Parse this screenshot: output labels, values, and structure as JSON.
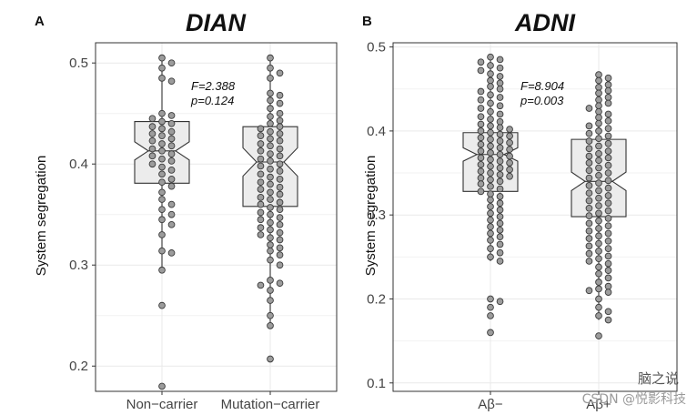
{
  "chart_data": [
    {
      "type": "box",
      "panel_label": "A",
      "title": "DIAN",
      "ylabel": "System segregation",
      "xlabel": "",
      "ylim": [
        0.175,
        0.52
      ],
      "yticks": [
        0.2,
        0.3,
        0.4,
        0.5
      ],
      "ytick_labels": [
        "0.2",
        "0.3",
        "0.4",
        "0.5"
      ],
      "grid": true,
      "annotation": [
        "F=2.388",
        "p=0.124"
      ],
      "groups": [
        {
          "name": "Non−carrier",
          "q1": 0.381,
          "median": 0.413,
          "q3": 0.442,
          "whisker_low": 0.295,
          "whisker_high": 0.505,
          "notch": 0.009,
          "points": [
            0.505,
            0.5,
            0.495,
            0.485,
            0.482,
            0.45,
            0.448,
            0.445,
            0.442,
            0.44,
            0.437,
            0.435,
            0.432,
            0.43,
            0.428,
            0.425,
            0.423,
            0.42,
            0.418,
            0.415,
            0.413,
            0.41,
            0.408,
            0.405,
            0.403,
            0.4,
            0.397,
            0.394,
            0.39,
            0.385,
            0.382,
            0.378,
            0.372,
            0.365,
            0.36,
            0.355,
            0.35,
            0.345,
            0.34,
            0.33,
            0.314,
            0.312,
            0.295,
            0.26,
            0.18
          ]
        },
        {
          "name": "Mutation−carrier",
          "q1": 0.358,
          "median": 0.402,
          "q3": 0.437,
          "whisker_low": 0.24,
          "whisker_high": 0.505,
          "notch": 0.014,
          "points": [
            0.505,
            0.495,
            0.49,
            0.485,
            0.47,
            0.468,
            0.463,
            0.46,
            0.455,
            0.45,
            0.447,
            0.443,
            0.44,
            0.437,
            0.435,
            0.432,
            0.43,
            0.428,
            0.425,
            0.423,
            0.42,
            0.418,
            0.415,
            0.413,
            0.41,
            0.408,
            0.405,
            0.403,
            0.4,
            0.398,
            0.395,
            0.393,
            0.39,
            0.387,
            0.385,
            0.382,
            0.38,
            0.377,
            0.375,
            0.372,
            0.37,
            0.367,
            0.365,
            0.362,
            0.36,
            0.357,
            0.355,
            0.352,
            0.35,
            0.347,
            0.345,
            0.342,
            0.34,
            0.337,
            0.335,
            0.332,
            0.33,
            0.327,
            0.325,
            0.32,
            0.317,
            0.314,
            0.31,
            0.305,
            0.3,
            0.285,
            0.282,
            0.28,
            0.275,
            0.265,
            0.25,
            0.24,
            0.207
          ]
        }
      ]
    },
    {
      "type": "box",
      "panel_label": "B",
      "title": "ADNI",
      "ylabel": "System segregation",
      "xlabel": "",
      "ylim": [
        0.09,
        0.505
      ],
      "yticks": [
        0.1,
        0.2,
        0.3,
        0.4,
        0.5
      ],
      "ytick_labels": [
        "0.1",
        "0.2",
        "0.3",
        "0.4",
        "0.5"
      ],
      "grid": true,
      "annotation": [
        "F=8.904",
        "p=0.003"
      ],
      "groups": [
        {
          "name": "Aβ−",
          "q1": 0.328,
          "median": 0.372,
          "q3": 0.398,
          "whisker_low": 0.245,
          "whisker_high": 0.488,
          "notch": 0.008,
          "points": [
            0.488,
            0.485,
            0.482,
            0.478,
            0.475,
            0.472,
            0.468,
            0.465,
            0.46,
            0.457,
            0.453,
            0.45,
            0.447,
            0.443,
            0.44,
            0.437,
            0.433,
            0.43,
            0.427,
            0.423,
            0.42,
            0.417,
            0.414,
            0.411,
            0.408,
            0.406,
            0.404,
            0.402,
            0.4,
            0.398,
            0.396,
            0.394,
            0.392,
            0.39,
            0.388,
            0.386,
            0.384,
            0.382,
            0.38,
            0.378,
            0.376,
            0.374,
            0.372,
            0.37,
            0.368,
            0.366,
            0.364,
            0.362,
            0.36,
            0.358,
            0.356,
            0.354,
            0.352,
            0.35,
            0.348,
            0.346,
            0.344,
            0.342,
            0.34,
            0.337,
            0.334,
            0.331,
            0.328,
            0.325,
            0.322,
            0.318,
            0.314,
            0.31,
            0.306,
            0.302,
            0.298,
            0.294,
            0.29,
            0.286,
            0.282,
            0.278,
            0.274,
            0.27,
            0.265,
            0.26,
            0.255,
            0.25,
            0.245,
            0.2,
            0.197,
            0.19,
            0.18,
            0.16
          ]
        },
        {
          "name": "Aβ+",
          "q1": 0.298,
          "median": 0.34,
          "q3": 0.39,
          "whisker_low": 0.175,
          "whisker_high": 0.467,
          "notch": 0.011,
          "points": [
            0.467,
            0.463,
            0.46,
            0.455,
            0.452,
            0.448,
            0.445,
            0.44,
            0.437,
            0.433,
            0.43,
            0.427,
            0.423,
            0.42,
            0.416,
            0.412,
            0.409,
            0.406,
            0.403,
            0.4,
            0.397,
            0.394,
            0.391,
            0.388,
            0.385,
            0.382,
            0.379,
            0.376,
            0.373,
            0.37,
            0.368,
            0.365,
            0.362,
            0.359,
            0.356,
            0.353,
            0.35,
            0.347,
            0.344,
            0.341,
            0.338,
            0.335,
            0.332,
            0.329,
            0.326,
            0.323,
            0.32,
            0.317,
            0.314,
            0.311,
            0.308,
            0.305,
            0.302,
            0.299,
            0.296,
            0.293,
            0.29,
            0.287,
            0.284,
            0.281,
            0.278,
            0.275,
            0.272,
            0.269,
            0.266,
            0.263,
            0.26,
            0.257,
            0.254,
            0.251,
            0.248,
            0.245,
            0.242,
            0.238,
            0.234,
            0.23,
            0.225,
            0.22,
            0.215,
            0.212,
            0.21,
            0.208,
            0.2,
            0.19,
            0.185,
            0.18,
            0.175,
            0.156
          ]
        }
      ]
    }
  ],
  "watermark": {
    "brand": "脑之说",
    "csdn": "CSDN @悦影科技"
  }
}
